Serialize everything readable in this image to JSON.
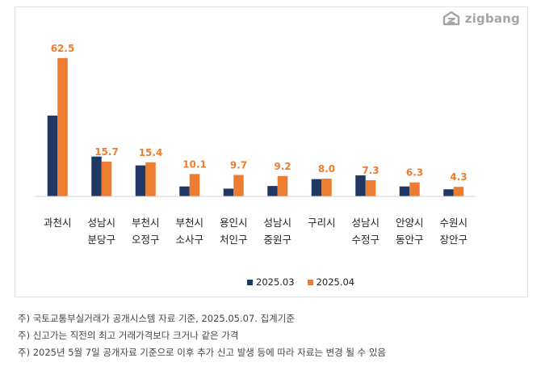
{
  "brand": {
    "name": "zigbang",
    "icon": "zigbang-logo-icon"
  },
  "chart_data": {
    "type": "bar",
    "categories": [
      [
        "과천시"
      ],
      [
        "성남시",
        "분당구"
      ],
      [
        "부천시",
        "오정구"
      ],
      [
        "부천시",
        "소사구"
      ],
      [
        "용인시",
        "처인구"
      ],
      [
        "성남시",
        "중원구"
      ],
      [
        "구리시"
      ],
      [
        "성남시",
        "수정구"
      ],
      [
        "안양시",
        "동안구"
      ],
      [
        "수원시",
        "장안구"
      ]
    ],
    "series": [
      {
        "name": "2025.03",
        "color": "#1F3864",
        "values": [
          36.5,
          18.0,
          14.0,
          4.5,
          3.5,
          4.7,
          7.8,
          9.5,
          4.5,
          3.2
        ]
      },
      {
        "name": "2025.04",
        "color": "#ED7D31",
        "values": [
          62.5,
          15.7,
          15.4,
          10.1,
          9.7,
          9.2,
          8.0,
          7.3,
          6.3,
          4.3
        ]
      }
    ],
    "data_labels": [
      "62.5",
      "15.7",
      "15.4",
      "10.1",
      "9.7",
      "9.2",
      "8.0",
      "7.3",
      "6.3",
      "4.3"
    ],
    "ylim": [
      0,
      65
    ],
    "grid": false,
    "legend_position": "bottom"
  },
  "notes": [
    "주) 국토교통부실거래가 공개시스템 자료 기준, 2025.05.07. 집계기준",
    "주) 신고가는 직전의 최고 거래가격보다 크거나 같은 가격",
    "주) 2025년 5월 7일 공개자료 기준으로 이후 추가 신고 발생 등에 따라 자료는 변경 될 수 있음"
  ]
}
